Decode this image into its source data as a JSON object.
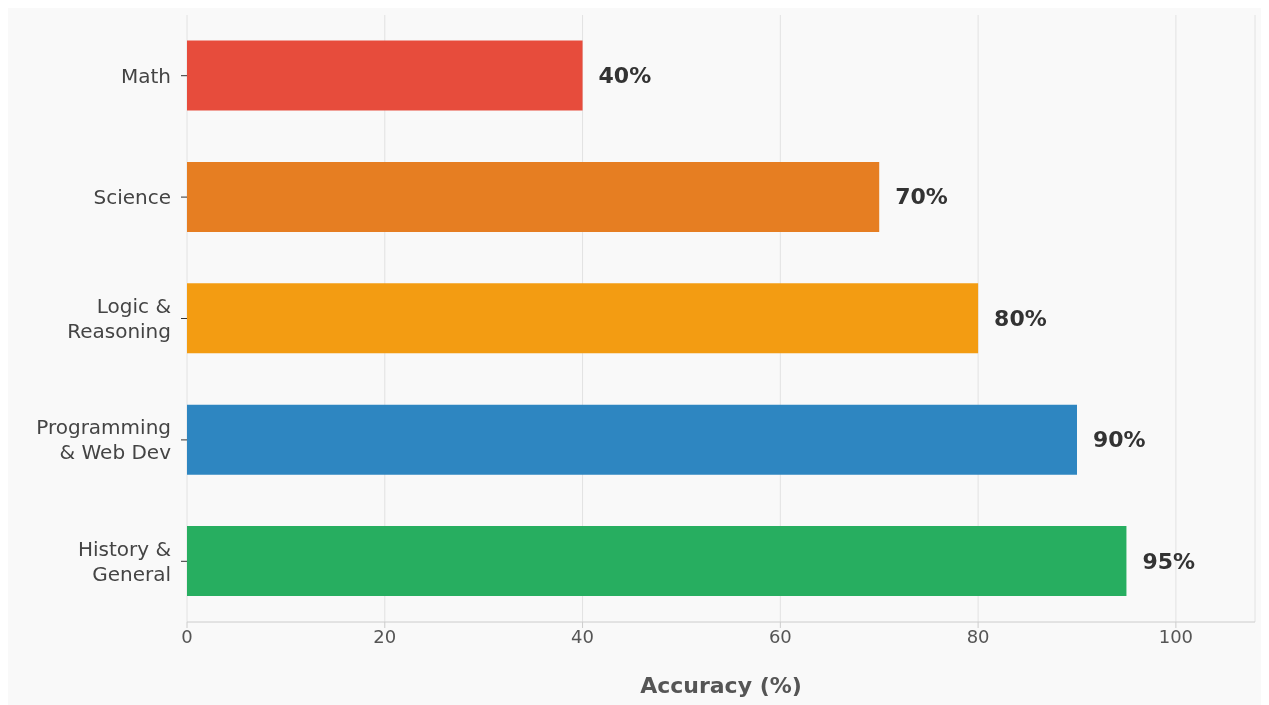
{
  "chart_data": {
    "type": "bar",
    "orientation": "horizontal",
    "xlabel": "Accuracy (%)",
    "categories": [
      "Math",
      "Science",
      "Logic &\nReasoning",
      "Programming\n& Web Dev",
      "History &\nGeneral"
    ],
    "values": [
      40,
      70,
      80,
      90,
      95
    ],
    "colors": [
      "#e74c3c",
      "#e67e22",
      "#f39c12",
      "#2e86c1",
      "#27ae60"
    ],
    "value_labels": [
      "40%",
      "70%",
      "80%",
      "90%",
      "95%"
    ],
    "xlim": [
      0,
      108
    ],
    "xticks": [
      0,
      20,
      40,
      60,
      80,
      100
    ],
    "grid": "x"
  }
}
